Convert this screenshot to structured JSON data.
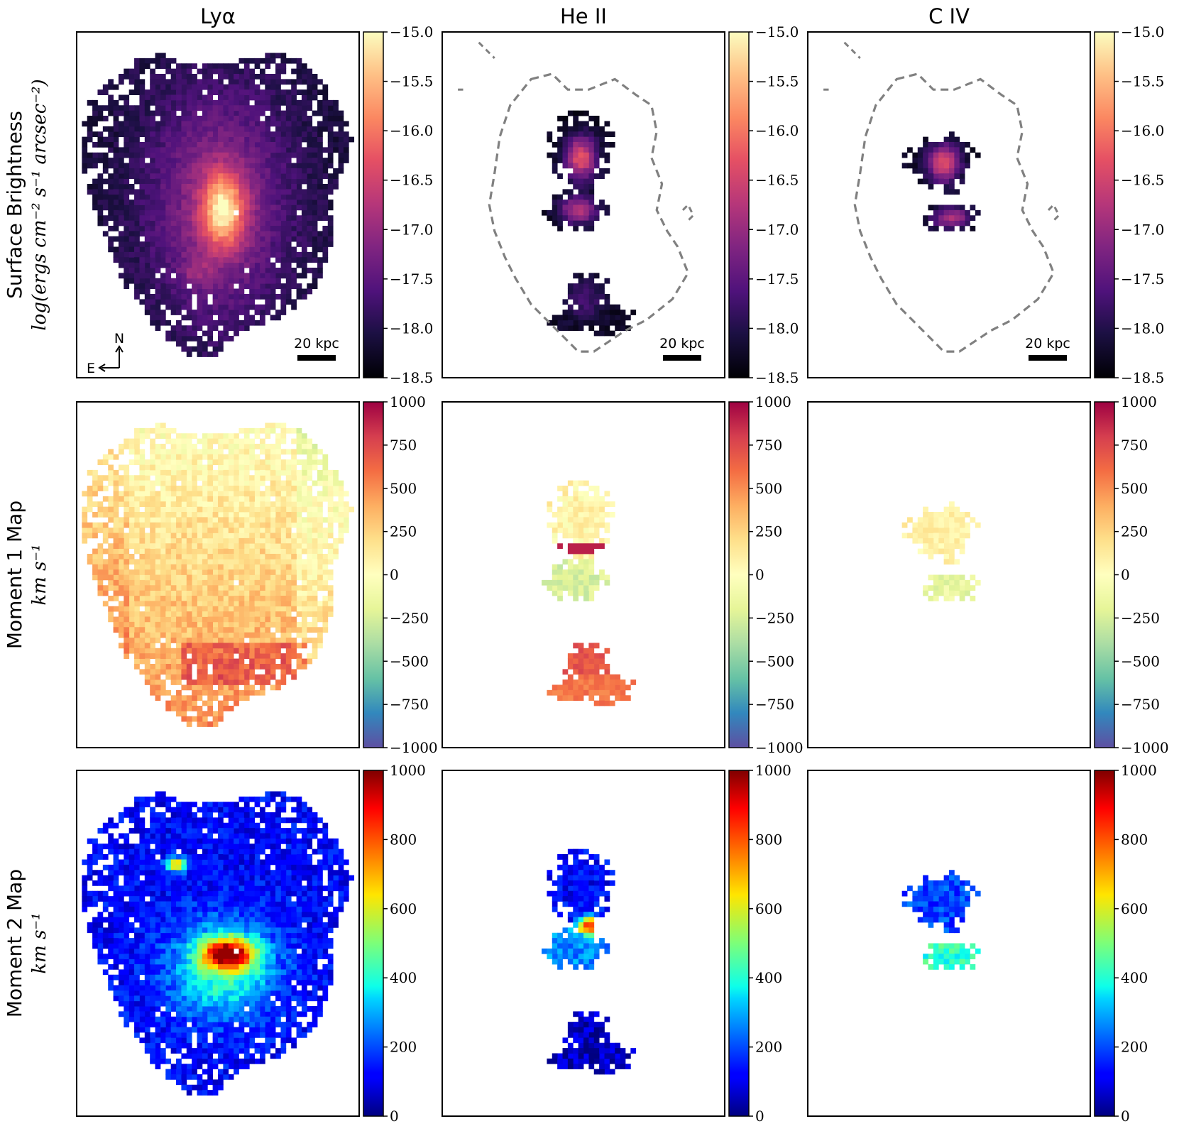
{
  "chart_data": {
    "type": "heatmap",
    "columns": [
      "Lyα",
      "He II",
      "C IV"
    ],
    "rows": [
      {
        "id": "surface_brightness",
        "label_line1": "Surface Brightness",
        "label_line2": "log(ergs cm⁻² s⁻¹ arcsec⁻²)",
        "colormap": "magma",
        "range": [
          -18.5,
          -15.0
        ],
        "ticks": [
          -15.0,
          -15.5,
          -16.0,
          -16.5,
          -17.0,
          -17.5,
          -18.0,
          -18.5
        ],
        "tick_labels": [
          "−15.0",
          "−15.5",
          "−16.0",
          "−16.5",
          "−17.0",
          "−17.5",
          "−18.0",
          "−18.5"
        ]
      },
      {
        "id": "moment1",
        "label_line1": "Moment 1 Map",
        "label_line2": "km s⁻¹",
        "colormap": "spectral_r",
        "range": [
          -1000,
          1000
        ],
        "ticks": [
          1000,
          750,
          500,
          250,
          0,
          -250,
          -500,
          -750,
          -1000
        ],
        "tick_labels": [
          "1000",
          "750",
          "500",
          "250",
          "0",
          "−250",
          "−500",
          "−750",
          "−1000"
        ]
      },
      {
        "id": "moment2",
        "label_line1": "Moment 2 Map",
        "label_line2": "km s⁻¹",
        "colormap": "jet",
        "range": [
          0,
          1000
        ],
        "ticks": [
          1000,
          800,
          600,
          400,
          200,
          0
        ],
        "tick_labels": [
          "1000",
          "800",
          "600",
          "400",
          "200",
          "0"
        ]
      }
    ],
    "scale_bar_label": "20 kpc",
    "compass": {
      "north": "N",
      "east": "E"
    },
    "contour_style": "dashed gray Lyα surface-brightness outline overlaid on He II and C IV maps"
  }
}
